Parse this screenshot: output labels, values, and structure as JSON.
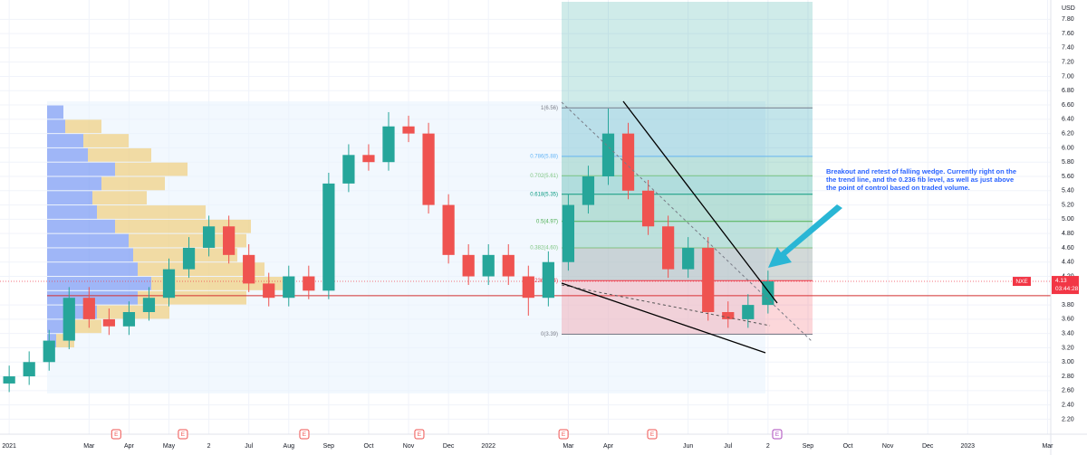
{
  "chart_data": {
    "type": "candlestick",
    "ticker": "NXE",
    "currency": "USD",
    "last_price": {
      "value": 4.13,
      "label": "4.13"
    },
    "countdown": "03:44:28",
    "xlim": [
      -0.23,
      26.08
    ],
    "ylim": [
      1.99,
      8.07
    ],
    "x": [
      0,
      0.5,
      1,
      1.5,
      2,
      2.5,
      3,
      3.5,
      4,
      4.5,
      5,
      5.5,
      6,
      6.5,
      7,
      7.5,
      8,
      8.5,
      9,
      9.5,
      10,
      10.5,
      11,
      11.5,
      12,
      12.5,
      13,
      13.5,
      14,
      14.5,
      15,
      15.5,
      16,
      16.5,
      17,
      17.5,
      18,
      18.5,
      19
    ],
    "open": [
      2.7,
      2.8,
      3.0,
      3.3,
      3.9,
      3.6,
      3.5,
      3.7,
      3.9,
      4.3,
      4.6,
      4.9,
      4.5,
      4.1,
      3.9,
      4.2,
      4.0,
      5.5,
      5.9,
      5.8,
      6.3,
      6.2,
      5.2,
      4.5,
      4.2,
      4.5,
      4.2,
      3.9,
      4.4,
      5.2,
      5.6,
      6.2,
      5.4,
      4.9,
      4.3,
      4.6,
      3.7,
      3.6,
      3.8
    ],
    "high": [
      2.95,
      3.15,
      3.45,
      4.05,
      4.05,
      3.75,
      3.85,
      4.05,
      4.45,
      4.75,
      5.05,
      5.05,
      4.65,
      4.25,
      4.35,
      4.35,
      5.65,
      6.05,
      6.05,
      6.5,
      6.45,
      6.35,
      5.35,
      4.65,
      4.65,
      4.65,
      4.35,
      4.55,
      5.35,
      5.75,
      6.55,
      6.35,
      5.55,
      5.05,
      4.75,
      4.75,
      3.85,
      3.95,
      4.28
    ],
    "low": [
      2.58,
      2.68,
      2.88,
      3.18,
      3.48,
      3.38,
      3.38,
      3.58,
      3.78,
      4.18,
      4.48,
      4.38,
      3.98,
      3.78,
      3.78,
      3.88,
      3.88,
      5.38,
      5.68,
      5.68,
      6.08,
      5.08,
      4.38,
      4.08,
      4.08,
      4.08,
      3.65,
      3.78,
      4.28,
      5.08,
      5.48,
      5.28,
      4.78,
      4.18,
      4.18,
      3.58,
      3.48,
      3.48,
      3.68
    ],
    "close": [
      2.8,
      3.0,
      3.3,
      3.9,
      3.6,
      3.5,
      3.7,
      3.9,
      4.3,
      4.6,
      4.9,
      4.5,
      4.1,
      3.9,
      4.2,
      4.0,
      5.5,
      5.9,
      5.8,
      6.3,
      6.2,
      5.2,
      4.5,
      4.2,
      4.5,
      4.2,
      3.9,
      4.4,
      5.2,
      5.6,
      6.2,
      5.4,
      4.9,
      4.3,
      4.6,
      3.7,
      3.6,
      3.8,
      4.13
    ],
    "up_color": "#26a69a",
    "down_color": "#ef5350",
    "yticks": [
      {
        "value": 2.2,
        "label": "2.20"
      },
      {
        "value": 2.4,
        "label": "2.40"
      },
      {
        "value": 2.6,
        "label": "2.60"
      },
      {
        "value": 2.8,
        "label": "2.80"
      },
      {
        "value": 3.0,
        "label": "3.00"
      },
      {
        "value": 3.2,
        "label": "3.20"
      },
      {
        "value": 3.4,
        "label": "3.40"
      },
      {
        "value": 3.6,
        "label": "3.60"
      },
      {
        "value": 3.8,
        "label": "3.80"
      },
      {
        "value": 4.2,
        "label": "4.20"
      },
      {
        "value": 4.4,
        "label": "4.40"
      },
      {
        "value": 4.6,
        "label": "4.60"
      },
      {
        "value": 4.8,
        "label": "4.80"
      },
      {
        "value": 5.0,
        "label": "5.00"
      },
      {
        "value": 5.2,
        "label": "5.20"
      },
      {
        "value": 5.4,
        "label": "5.40"
      },
      {
        "value": 5.6,
        "label": "5.60"
      },
      {
        "value": 5.8,
        "label": "5.80"
      },
      {
        "value": 6.0,
        "label": "6.00"
      },
      {
        "value": 6.2,
        "label": "6.20"
      },
      {
        "value": 6.4,
        "label": "6.40"
      },
      {
        "value": 6.6,
        "label": "6.60"
      },
      {
        "value": 6.8,
        "label": "6.80"
      },
      {
        "value": 7.0,
        "label": "7.00"
      },
      {
        "value": 7.2,
        "label": "7.20"
      },
      {
        "value": 7.4,
        "label": "7.40"
      },
      {
        "value": 7.6,
        "label": "7.60"
      },
      {
        "value": 7.8,
        "label": "7.80"
      }
    ],
    "xticks": [
      {
        "value": 0,
        "label": "2021"
      },
      {
        "value": 2,
        "label": "Mar"
      },
      {
        "value": 3,
        "label": "Apr"
      },
      {
        "value": 4,
        "label": "May"
      },
      {
        "value": 5,
        "label": "2"
      },
      {
        "value": 6,
        "label": "Jul"
      },
      {
        "value": 7,
        "label": "Aug"
      },
      {
        "value": 8,
        "label": "Sep"
      },
      {
        "value": 9,
        "label": "Oct"
      },
      {
        "value": 10,
        "label": "Nov"
      },
      {
        "value": 11,
        "label": "Dec"
      },
      {
        "value": 12,
        "label": "2022"
      },
      {
        "value": 14,
        "label": "Mar"
      },
      {
        "value": 15,
        "label": "Apr"
      },
      {
        "value": 17,
        "label": "Jun"
      },
      {
        "value": 18,
        "label": "Jul"
      },
      {
        "value": 19,
        "label": "2"
      },
      {
        "value": 20,
        "label": "Sep"
      },
      {
        "value": 21,
        "label": "Oct"
      },
      {
        "value": 22,
        "label": "Nov"
      },
      {
        "value": 23,
        "label": "Dec"
      },
      {
        "value": 24,
        "label": "2023"
      },
      {
        "value": 26,
        "label": "Mar"
      }
    ],
    "earnings": [
      {
        "x": 2.68,
        "label": "E"
      },
      {
        "x": 4.35,
        "label": "E"
      },
      {
        "x": 7.39,
        "label": "E"
      },
      {
        "x": 10.27,
        "label": "E"
      },
      {
        "x": 13.88,
        "label": "E"
      },
      {
        "x": 16.1,
        "label": "E"
      },
      {
        "x": 19.23,
        "label": "E"
      }
    ],
    "volume_profile": {
      "price_low": [
        6.4,
        6.2,
        6.0,
        5.8,
        5.6,
        5.4,
        5.2,
        5.0,
        4.8,
        4.6,
        4.4,
        4.2,
        4.0,
        3.8,
        3.6,
        3.4,
        3.2
      ],
      "down_volume": [
        18,
        20,
        40,
        45,
        75,
        60,
        50,
        55,
        75,
        90,
        95,
        100,
        115,
        100,
        55,
        20,
        10
      ],
      "up_volume": [
        0,
        40,
        50,
        70,
        80,
        70,
        60,
        120,
        150,
        130,
        115,
        140,
        145,
        120,
        80,
        40,
        20
      ],
      "down_color": "#5b7ff0",
      "up_color": "#f0c35a",
      "point_of_control": 3.93
    },
    "fib_levels": [
      {
        "price": 6.56,
        "label": "1(6.56)",
        "color": "#787b86"
      },
      {
        "price": 5.88,
        "label": "0.786(5.88)",
        "color": "#64b5f6"
      },
      {
        "price": 5.61,
        "label": "0.702(5.61)",
        "color": "#81c784"
      },
      {
        "price": 5.35,
        "label": "0.618(5.35)",
        "color": "#089981"
      },
      {
        "price": 4.97,
        "label": "0.5(4.97)",
        "color": "#4caf50"
      },
      {
        "price": 4.6,
        "label": "0.382(4.60)",
        "color": "#81c784"
      },
      {
        "price": 4.14,
        "label": "0.236(4.14)",
        "color": "#f23645"
      },
      {
        "price": 3.39,
        "label": "0(3.39)",
        "color": "#787b86"
      }
    ],
    "annotation": [
      "Breakout and retest of falling wedge. Currently right on the",
      "the trend line, and the 0.236 fib level, as well as just above",
      "the point of control based on traded volume."
    ]
  }
}
